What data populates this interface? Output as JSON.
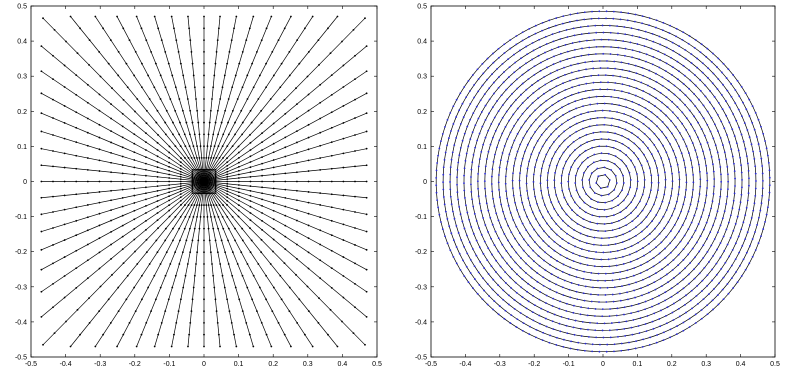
{
  "chart_data": [
    {
      "type": "line",
      "title": "",
      "xlabel": "",
      "ylabel": "",
      "xlim": [
        -0.5,
        0.5
      ],
      "ylim": [
        -0.5,
        0.5
      ],
      "xticks": [
        "-0.5",
        "-0.4",
        "-0.3",
        "-0.2",
        "-0.1",
        "0",
        "0.1",
        "0.2",
        "0.3",
        "0.4",
        "0.5"
      ],
      "yticks": [
        "0.5",
        "0.4",
        "0.3",
        "0.2",
        "0.1",
        "0",
        "-0.1",
        "-0.2",
        "-0.3",
        "-0.4",
        "-0.5"
      ],
      "grid": false,
      "legend": "none",
      "color": "#000000",
      "marker": "dot",
      "pattern": "radial rays with dot markers and concentric circles near the origin",
      "series": [
        {
          "rays": 64,
          "r_max": 0.5,
          "points_per_ray": 14,
          "inner_circle_radii": [
            0.006,
            0.012,
            0.018,
            0.024,
            0.03
          ]
        }
      ]
    },
    {
      "type": "line",
      "title": "",
      "xlabel": "",
      "ylabel": "",
      "xlim": [
        -0.5,
        0.5
      ],
      "ylim": [
        -0.5,
        0.5
      ],
      "xticks": [
        "-0.5",
        "-0.4",
        "-0.3",
        "-0.2",
        "-0.1",
        "0",
        "0.1",
        "0.2",
        "0.3",
        "0.4",
        "0.5"
      ],
      "yticks": [
        "0.5",
        "0.4",
        "0.3",
        "0.2",
        "0.1",
        "0",
        "-0.1",
        "-0.2",
        "-0.3",
        "-0.4",
        "-0.5"
      ],
      "grid": false,
      "legend": "none",
      "color": "#000000",
      "marker_color": "#2a2ad8",
      "marker": "dot",
      "pattern": "concentric rings with blue dot markers",
      "series": [
        {
          "rings": 24,
          "r_max": 0.485,
          "innermost_points": 6
        }
      ]
    }
  ]
}
